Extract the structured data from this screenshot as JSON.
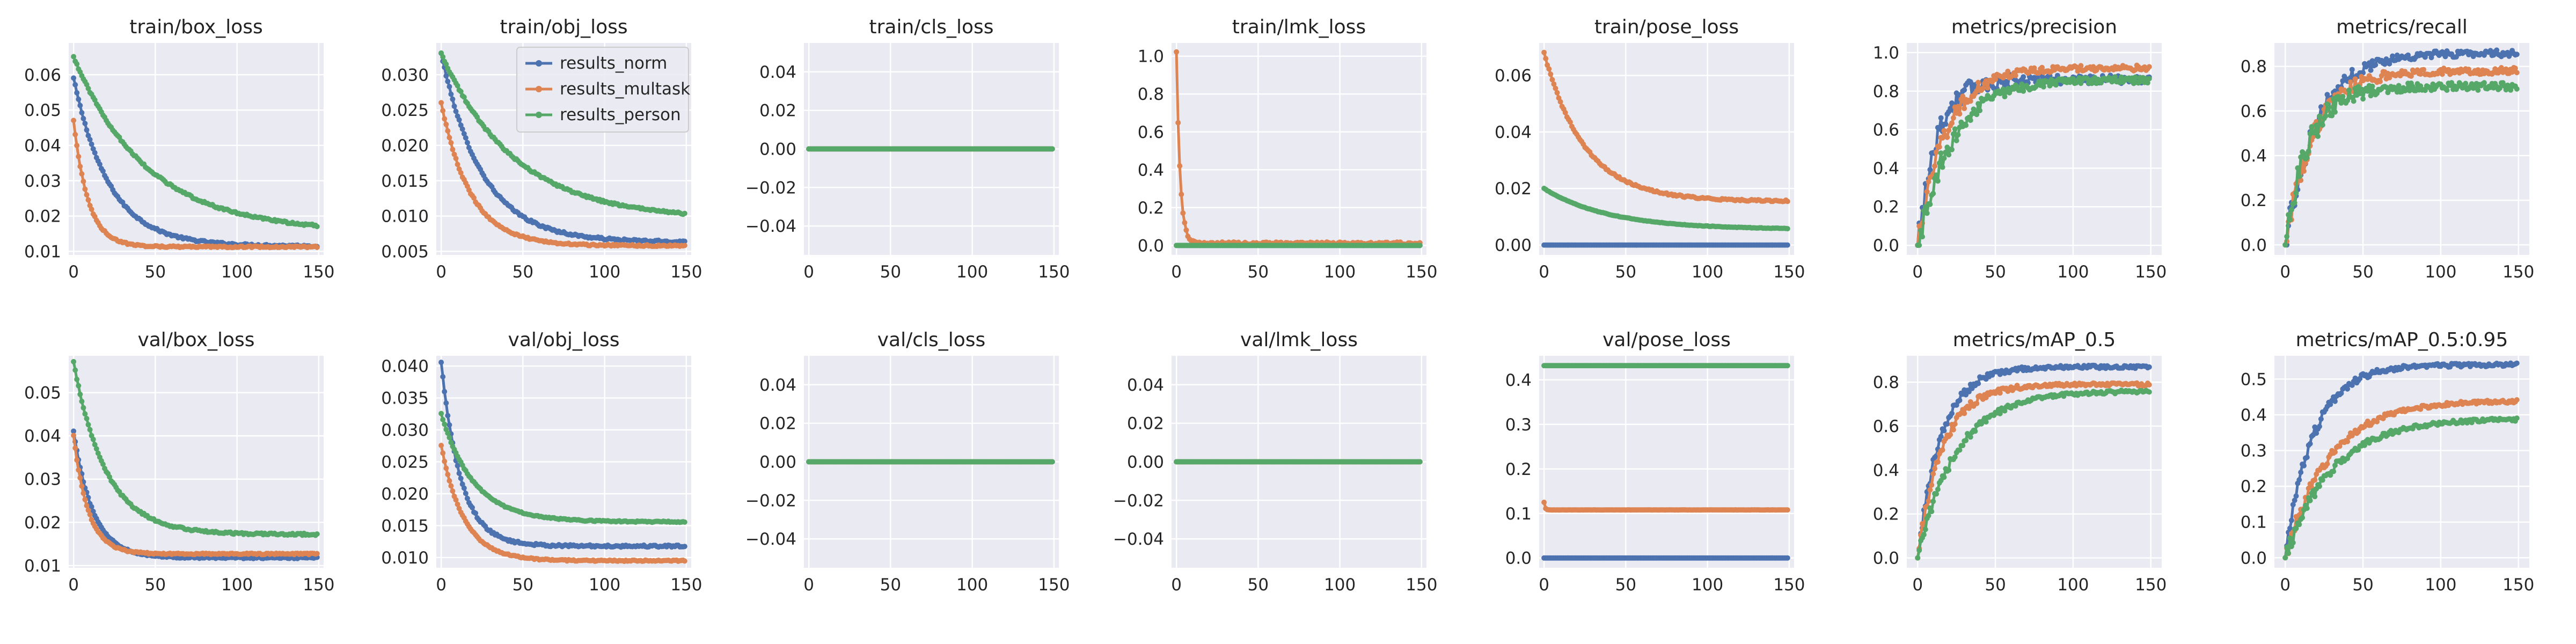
{
  "legend": {
    "entries": [
      {
        "name": "results_norm",
        "color": "#4c72b0"
      },
      {
        "name": "results_multask",
        "color": "#dd8452"
      },
      {
        "name": "results_person",
        "color": "#55a868"
      }
    ]
  },
  "chart_data": [
    {
      "type": "line",
      "title": "train/box_loss",
      "xlim": [
        -3,
        153
      ],
      "ylim": [
        0.009,
        0.069
      ],
      "xticks": [
        0,
        50,
        100,
        150
      ],
      "yticks": [
        0.01,
        0.02,
        0.03,
        0.04,
        0.05,
        0.06
      ],
      "ytick_labels": [
        "0.01",
        "0.02",
        "0.03",
        "0.04",
        "0.05",
        "0.06"
      ],
      "series": [
        {
          "name": "results_norm",
          "color": "#4c72b0",
          "n": 150,
          "start": 0.059,
          "end": 0.0115,
          "tau": 22,
          "shape": "decay"
        },
        {
          "name": "results_multask",
          "color": "#dd8452",
          "n": 150,
          "start": 0.047,
          "end": 0.0113,
          "tau": 9,
          "shape": "decay"
        },
        {
          "name": "results_person",
          "color": "#55a868",
          "n": 150,
          "start": 0.065,
          "end": 0.0155,
          "tau": 45,
          "shape": "decay"
        }
      ]
    },
    {
      "type": "line",
      "title": "train/obj_loss",
      "xlim": [
        -3,
        153
      ],
      "ylim": [
        0.0045,
        0.0345
      ],
      "xticks": [
        0,
        50,
        100,
        150
      ],
      "yticks": [
        0.005,
        0.01,
        0.015,
        0.02,
        0.025,
        0.03
      ],
      "ytick_labels": [
        "0.005",
        "0.010",
        "0.015",
        "0.020",
        "0.025",
        "0.030"
      ],
      "legend": true,
      "series": [
        {
          "name": "results_norm",
          "color": "#4c72b0",
          "n": 150,
          "start": 0.033,
          "end": 0.0063,
          "tau": 25,
          "shape": "decay"
        },
        {
          "name": "results_multask",
          "color": "#dd8452",
          "n": 150,
          "start": 0.026,
          "end": 0.0058,
          "tau": 18,
          "shape": "decay"
        },
        {
          "name": "results_person",
          "color": "#55a868",
          "n": 150,
          "start": 0.033,
          "end": 0.0095,
          "tau": 45,
          "shape": "decay"
        }
      ]
    },
    {
      "type": "line",
      "title": "train/cls_loss",
      "xlim": [
        -3,
        153
      ],
      "ylim": [
        -0.055,
        0.055
      ],
      "xticks": [
        0,
        50,
        100,
        150
      ],
      "yticks": [
        -0.04,
        -0.02,
        0,
        0.02,
        0.04
      ],
      "ytick_labels": [
        "−0.04",
        "−0.02",
        "0.00",
        "0.02",
        "0.04"
      ],
      "series": [
        {
          "name": "results_norm",
          "color": "#4c72b0",
          "n": 150,
          "value": 0,
          "shape": "const"
        },
        {
          "name": "results_multask",
          "color": "#dd8452",
          "n": 150,
          "value": 0,
          "shape": "const"
        },
        {
          "name": "results_person",
          "color": "#55a868",
          "n": 150,
          "value": 0,
          "shape": "const"
        }
      ]
    },
    {
      "type": "line",
      "title": "train/lmk_loss",
      "xlim": [
        -3,
        153
      ],
      "ylim": [
        -0.05,
        1.07
      ],
      "xticks": [
        0,
        50,
        100,
        150
      ],
      "yticks": [
        0,
        0.2,
        0.4,
        0.6,
        0.8,
        1.0
      ],
      "ytick_labels": [
        "0.0",
        "0.2",
        "0.4",
        "0.6",
        "0.8",
        "1.0"
      ],
      "series": [
        {
          "name": "results_norm",
          "color": "#4c72b0",
          "n": 150,
          "value": 0,
          "shape": "const"
        },
        {
          "name": "results_multask",
          "color": "#dd8452",
          "n": 150,
          "start": 1.02,
          "end": 0.012,
          "tau": 2.2,
          "shape": "decay"
        },
        {
          "name": "results_person",
          "color": "#55a868",
          "n": 150,
          "value": 0,
          "shape": "const"
        }
      ]
    },
    {
      "type": "line",
      "title": "train/pose_loss",
      "xlim": [
        -3,
        153
      ],
      "ylim": [
        -0.0035,
        0.0715
      ],
      "xticks": [
        0,
        50,
        100,
        150
      ],
      "yticks": [
        0,
        0.02,
        0.04,
        0.06
      ],
      "ytick_labels": [
        "0.00",
        "0.02",
        "0.04",
        "0.06"
      ],
      "series": [
        {
          "name": "results_norm",
          "color": "#4c72b0",
          "n": 150,
          "value": 0,
          "shape": "const"
        },
        {
          "name": "results_multask",
          "color": "#dd8452",
          "n": 150,
          "start": 0.068,
          "end": 0.0155,
          "tau": 25,
          "shape": "decay"
        },
        {
          "name": "results_person",
          "color": "#55a868",
          "n": 150,
          "start": 0.02,
          "end": 0.0055,
          "tau": 40,
          "shape": "decay"
        }
      ]
    },
    {
      "type": "line",
      "title": "metrics/precision",
      "xlim": [
        -7,
        157
      ],
      "ylim": [
        -0.05,
        1.05
      ],
      "xticks": [
        0,
        50,
        100,
        150
      ],
      "yticks": [
        0,
        0.2,
        0.4,
        0.6,
        0.8,
        1.0
      ],
      "ytick_labels": [
        "0.0",
        "0.2",
        "0.4",
        "0.6",
        "0.8",
        "1.0"
      ],
      "series": [
        {
          "name": "results_norm",
          "color": "#4c72b0",
          "n": 150,
          "start": 0.0,
          "end": 0.86,
          "tau": 12,
          "noise": 0.09,
          "shape": "grow"
        },
        {
          "name": "results_multask",
          "color": "#dd8452",
          "n": 150,
          "start": 0.0,
          "end": 0.92,
          "tau": 18,
          "noise": 0.06,
          "shape": "grow"
        },
        {
          "name": "results_person",
          "color": "#55a868",
          "n": 150,
          "start": 0.0,
          "end": 0.86,
          "tau": 22,
          "noise": 0.07,
          "shape": "grow"
        }
      ]
    },
    {
      "type": "line",
      "title": "metrics/recall",
      "xlim": [
        -7,
        157
      ],
      "ylim": [
        -0.045,
        0.905
      ],
      "xticks": [
        0,
        50,
        100,
        150
      ],
      "yticks": [
        0,
        0.2,
        0.4,
        0.6,
        0.8
      ],
      "ytick_labels": [
        "0.0",
        "0.2",
        "0.4",
        "0.6",
        "0.8"
      ],
      "series": [
        {
          "name": "results_norm",
          "color": "#4c72b0",
          "n": 150,
          "start": 0.0,
          "end": 0.86,
          "tau": 20,
          "noise": 0.06,
          "shape": "grow"
        },
        {
          "name": "results_multask",
          "color": "#dd8452",
          "n": 150,
          "start": 0.0,
          "end": 0.78,
          "tau": 18,
          "noise": 0.06,
          "shape": "grow"
        },
        {
          "name": "results_person",
          "color": "#55a868",
          "n": 150,
          "start": 0.0,
          "end": 0.71,
          "tau": 15,
          "noise": 0.07,
          "shape": "grow"
        }
      ]
    },
    {
      "type": "line",
      "title": "val/box_loss",
      "xlim": [
        -3,
        153
      ],
      "ylim": [
        0.0095,
        0.0585
      ],
      "xticks": [
        0,
        50,
        100,
        150
      ],
      "yticks": [
        0.01,
        0.02,
        0.03,
        0.04,
        0.05
      ],
      "ytick_labels": [
        "0.01",
        "0.02",
        "0.03",
        "0.04",
        "0.05"
      ],
      "series": [
        {
          "name": "results_norm",
          "color": "#4c72b0",
          "n": 150,
          "start": 0.041,
          "end": 0.0118,
          "tau": 12,
          "shape": "decay"
        },
        {
          "name": "results_multask",
          "color": "#dd8452",
          "n": 150,
          "start": 0.04,
          "end": 0.0127,
          "tau": 9,
          "shape": "decay"
        },
        {
          "name": "results_person",
          "color": "#55a868",
          "n": 150,
          "start": 0.057,
          "end": 0.0172,
          "tau": 20,
          "shape": "decay"
        }
      ]
    },
    {
      "type": "line",
      "title": "val/obj_loss",
      "xlim": [
        -3,
        153
      ],
      "ylim": [
        0.0084,
        0.0416
      ],
      "xticks": [
        0,
        50,
        100,
        150
      ],
      "yticks": [
        0.01,
        0.015,
        0.02,
        0.025,
        0.03,
        0.035,
        0.04
      ],
      "ytick_labels": [
        "0.010",
        "0.015",
        "0.020",
        "0.025",
        "0.030",
        "0.035",
        "0.040"
      ],
      "series": [
        {
          "name": "results_norm",
          "color": "#4c72b0",
          "n": 150,
          "start": 0.0405,
          "end": 0.0118,
          "tau": 12,
          "shape": "decay"
        },
        {
          "name": "results_multask",
          "color": "#dd8452",
          "n": 150,
          "start": 0.0275,
          "end": 0.0095,
          "tau": 14,
          "shape": "decay"
        },
        {
          "name": "results_person",
          "color": "#55a868",
          "n": 150,
          "start": 0.0325,
          "end": 0.0156,
          "tau": 20,
          "shape": "decay"
        }
      ]
    },
    {
      "type": "line",
      "title": "val/cls_loss",
      "xlim": [
        -3,
        153
      ],
      "ylim": [
        -0.055,
        0.055
      ],
      "xticks": [
        0,
        50,
        100,
        150
      ],
      "yticks": [
        -0.04,
        -0.02,
        0,
        0.02,
        0.04
      ],
      "ytick_labels": [
        "−0.04",
        "−0.02",
        "0.00",
        "0.02",
        "0.04"
      ],
      "series": [
        {
          "name": "results_norm",
          "color": "#4c72b0",
          "n": 150,
          "value": 0,
          "shape": "const"
        },
        {
          "name": "results_multask",
          "color": "#dd8452",
          "n": 150,
          "value": 0,
          "shape": "const"
        },
        {
          "name": "results_person",
          "color": "#55a868",
          "n": 150,
          "value": 0,
          "shape": "const"
        }
      ]
    },
    {
      "type": "line",
      "title": "val/lmk_loss",
      "xlim": [
        -3,
        153
      ],
      "ylim": [
        -0.055,
        0.055
      ],
      "xticks": [
        0,
        50,
        100,
        150
      ],
      "yticks": [
        -0.04,
        -0.02,
        0,
        0.02,
        0.04
      ],
      "ytick_labels": [
        "−0.04",
        "−0.02",
        "0.00",
        "0.02",
        "0.04"
      ],
      "series": [
        {
          "name": "results_norm",
          "color": "#4c72b0",
          "n": 150,
          "value": 0,
          "shape": "const"
        },
        {
          "name": "results_multask",
          "color": "#dd8452",
          "n": 150,
          "value": 0,
          "shape": "const"
        },
        {
          "name": "results_person",
          "color": "#55a868",
          "n": 150,
          "value": 0,
          "shape": "const"
        }
      ]
    },
    {
      "type": "line",
      "title": "val/pose_loss",
      "xlim": [
        -3,
        153
      ],
      "ylim": [
        -0.022,
        0.454
      ],
      "xticks": [
        0,
        50,
        100,
        150
      ],
      "yticks": [
        0,
        0.1,
        0.2,
        0.3,
        0.4
      ],
      "ytick_labels": [
        "0.0",
        "0.1",
        "0.2",
        "0.3",
        "0.4"
      ],
      "series": [
        {
          "name": "results_norm",
          "color": "#4c72b0",
          "n": 150,
          "value": 0,
          "shape": "const"
        },
        {
          "name": "results_multask",
          "color": "#dd8452",
          "n": 150,
          "start": 0.125,
          "end": 0.108,
          "tau": 0.6,
          "shape": "decay"
        },
        {
          "name": "results_person",
          "color": "#55a868",
          "n": 150,
          "value": 0.432,
          "shape": "const"
        }
      ]
    },
    {
      "type": "line",
      "title": "metrics/mAP_0.5",
      "xlim": [
        -7,
        157
      ],
      "ylim": [
        -0.045,
        0.92
      ],
      "xticks": [
        0,
        50,
        100,
        150
      ],
      "yticks": [
        0,
        0.2,
        0.4,
        0.6,
        0.8
      ],
      "ytick_labels": [
        "0.0",
        "0.2",
        "0.4",
        "0.6",
        "0.8"
      ],
      "series": [
        {
          "name": "results_norm",
          "color": "#4c72b0",
          "n": 150,
          "start": 0.0,
          "end": 0.87,
          "tau": 15,
          "noise": 0.03,
          "shape": "grow"
        },
        {
          "name": "results_multask",
          "color": "#dd8452",
          "n": 150,
          "start": 0.0,
          "end": 0.79,
          "tau": 16,
          "noise": 0.03,
          "shape": "grow"
        },
        {
          "name": "results_person",
          "color": "#55a868",
          "n": 150,
          "start": 0.0,
          "end": 0.76,
          "tau": 25,
          "noise": 0.03,
          "shape": "grow"
        }
      ]
    },
    {
      "type": "line",
      "title": "metrics/mAP_0.5:0.95",
      "xlim": [
        -7,
        157
      ],
      "ylim": [
        -0.028,
        0.565
      ],
      "xticks": [
        0,
        50,
        100,
        150
      ],
      "yticks": [
        0,
        0.1,
        0.2,
        0.3,
        0.4,
        0.5
      ],
      "ytick_labels": [
        "0.0",
        "0.1",
        "0.2",
        "0.3",
        "0.4",
        "0.5"
      ],
      "series": [
        {
          "name": "results_norm",
          "color": "#4c72b0",
          "n": 150,
          "start": 0.0,
          "end": 0.54,
          "tau": 18,
          "noise": 0.02,
          "shape": "grow"
        },
        {
          "name": "results_multask",
          "color": "#dd8452",
          "n": 150,
          "start": 0.0,
          "end": 0.44,
          "tau": 28,
          "noise": 0.02,
          "shape": "grow"
        },
        {
          "name": "results_person",
          "color": "#55a868",
          "n": 150,
          "start": 0.0,
          "end": 0.39,
          "tau": 30,
          "noise": 0.02,
          "shape": "grow"
        }
      ]
    }
  ]
}
